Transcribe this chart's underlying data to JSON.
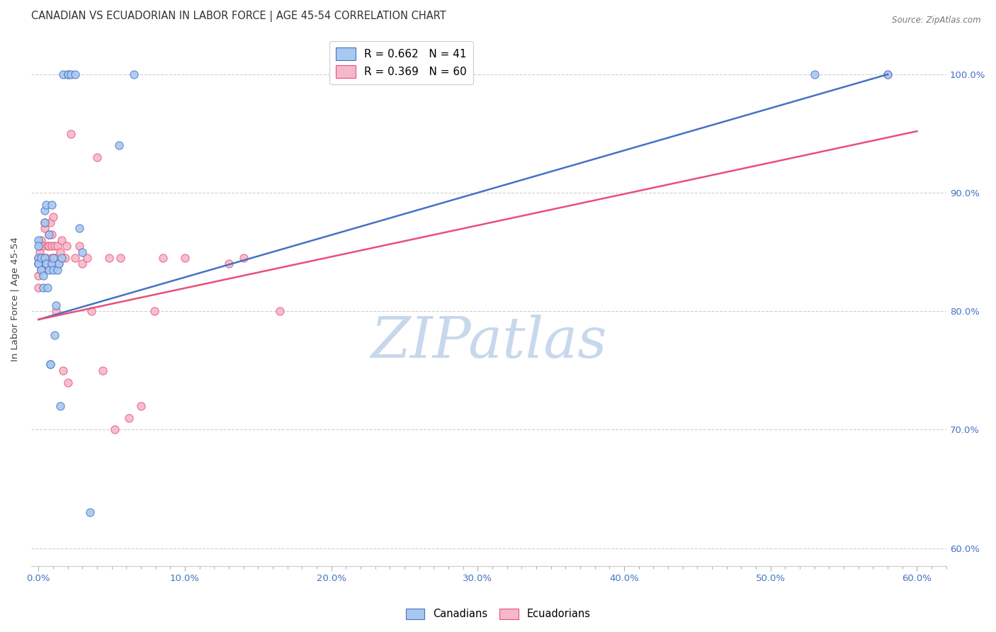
{
  "title": "CANADIAN VS ECUADORIAN IN LABOR FORCE | AGE 45-54 CORRELATION CHART",
  "source": "Source: ZipAtlas.com",
  "xlabel_ticks": [
    "0.0%",
    "",
    "",
    "",
    "",
    "",
    "",
    "",
    "",
    "",
    "10.0%",
    "",
    "",
    "",
    "",
    "",
    "",
    "",
    "",
    "",
    "20.0%",
    "",
    "",
    "",
    "",
    "",
    "",
    "",
    "",
    "",
    "30.0%",
    "",
    "",
    "",
    "",
    "",
    "",
    "",
    "",
    "",
    "40.0%",
    "",
    "",
    "",
    "",
    "",
    "",
    "",
    "",
    "",
    "50.0%",
    "",
    "",
    "",
    "",
    "",
    "",
    "",
    "",
    "",
    "60.0%"
  ],
  "xlabel_vals": [
    0.0,
    0.01,
    0.02,
    0.03,
    0.04,
    0.05,
    0.06,
    0.07,
    0.08,
    0.09,
    0.1,
    0.11,
    0.12,
    0.13,
    0.14,
    0.15,
    0.16,
    0.17,
    0.18,
    0.19,
    0.2,
    0.21,
    0.22,
    0.23,
    0.24,
    0.25,
    0.26,
    0.27,
    0.28,
    0.29,
    0.3,
    0.31,
    0.32,
    0.33,
    0.34,
    0.35,
    0.36,
    0.37,
    0.38,
    0.39,
    0.4,
    0.41,
    0.42,
    0.43,
    0.44,
    0.45,
    0.46,
    0.47,
    0.48,
    0.49,
    0.5,
    0.51,
    0.52,
    0.53,
    0.54,
    0.55,
    0.56,
    0.57,
    0.58,
    0.59,
    0.6
  ],
  "xlabel_major": [
    0.0,
    0.1,
    0.2,
    0.3,
    0.4,
    0.5,
    0.6
  ],
  "xlabel_major_labels": [
    "0.0%",
    "10.0%",
    "20.0%",
    "30.0%",
    "40.0%",
    "50.0%",
    "60.0%"
  ],
  "ylabel_ticks": [
    "60.0%",
    "70.0%",
    "80.0%",
    "90.0%",
    "100.0%"
  ],
  "ylabel_vals": [
    0.6,
    0.7,
    0.8,
    0.9,
    1.0
  ],
  "xlim": [
    -0.005,
    0.62
  ],
  "ylim": [
    0.585,
    1.035
  ],
  "canadian_color": "#A8C8F0",
  "ecuadorian_color": "#F5B8C8",
  "line_canadian_color": "#4472C4",
  "line_ecuadorian_color": "#E8507A",
  "watermark_color": "#C8D8EC",
  "legend_r_canadian": "R = 0.662",
  "legend_n_canadian": "N = 41",
  "legend_r_ecuadorian": "R = 0.369",
  "legend_n_ecuadorian": "N = 60",
  "canadian_line_x": [
    0.0,
    0.58
  ],
  "canadian_line_y": [
    0.793,
    1.0
  ],
  "ecuadorian_line_x": [
    0.0,
    0.6
  ],
  "ecuadorian_line_y": [
    0.793,
    0.952
  ],
  "canadian_x": [
    0.0,
    0.0,
    0.0,
    0.0,
    0.0,
    0.002,
    0.002,
    0.003,
    0.003,
    0.004,
    0.004,
    0.004,
    0.005,
    0.005,
    0.006,
    0.007,
    0.007,
    0.008,
    0.008,
    0.009,
    0.009,
    0.01,
    0.01,
    0.011,
    0.012,
    0.013,
    0.014,
    0.015,
    0.016,
    0.017,
    0.02,
    0.02,
    0.022,
    0.025,
    0.028,
    0.03,
    0.035,
    0.055,
    0.065,
    0.53,
    0.58
  ],
  "canadian_y": [
    0.845,
    0.84,
    0.86,
    0.84,
    0.855,
    0.845,
    0.835,
    0.83,
    0.82,
    0.845,
    0.875,
    0.885,
    0.89,
    0.84,
    0.82,
    0.865,
    0.835,
    0.755,
    0.755,
    0.89,
    0.84,
    0.835,
    0.845,
    0.78,
    0.805,
    0.835,
    0.84,
    0.72,
    0.845,
    1.0,
    1.0,
    1.0,
    1.0,
    1.0,
    0.87,
    0.85,
    0.63,
    0.94,
    1.0,
    1.0,
    1.0
  ],
  "ecuadorian_x": [
    0.0,
    0.0,
    0.0,
    0.0,
    0.001,
    0.001,
    0.001,
    0.002,
    0.002,
    0.002,
    0.003,
    0.003,
    0.003,
    0.004,
    0.004,
    0.005,
    0.005,
    0.005,
    0.006,
    0.006,
    0.007,
    0.007,
    0.008,
    0.008,
    0.009,
    0.009,
    0.009,
    0.01,
    0.011,
    0.011,
    0.012,
    0.012,
    0.013,
    0.014,
    0.015,
    0.016,
    0.017,
    0.018,
    0.019,
    0.02,
    0.022,
    0.025,
    0.028,
    0.03,
    0.033,
    0.036,
    0.04,
    0.044,
    0.048,
    0.052,
    0.056,
    0.062,
    0.07,
    0.079,
    0.085,
    0.1,
    0.13,
    0.14,
    0.165,
    0.58
  ],
  "ecuadorian_y": [
    0.845,
    0.84,
    0.83,
    0.82,
    0.84,
    0.85,
    0.855,
    0.86,
    0.845,
    0.835,
    0.835,
    0.845,
    0.855,
    0.87,
    0.875,
    0.84,
    0.84,
    0.845,
    0.855,
    0.84,
    0.855,
    0.865,
    0.875,
    0.84,
    0.845,
    0.855,
    0.865,
    0.88,
    0.845,
    0.855,
    0.8,
    0.845,
    0.855,
    0.84,
    0.85,
    0.86,
    0.75,
    0.845,
    0.855,
    0.74,
    0.95,
    0.845,
    0.855,
    0.84,
    0.845,
    0.8,
    0.93,
    0.75,
    0.845,
    0.7,
    0.845,
    0.71,
    0.72,
    0.8,
    0.845,
    0.845,
    0.84,
    0.845,
    0.8,
    1.0
  ],
  "ylabel": "In Labor Force | Age 45-54",
  "title_fontsize": 10.5,
  "axis_label_fontsize": 9.5,
  "tick_fontsize": 9.5,
  "legend_fontsize": 11,
  "tick_color": "#4472C4"
}
